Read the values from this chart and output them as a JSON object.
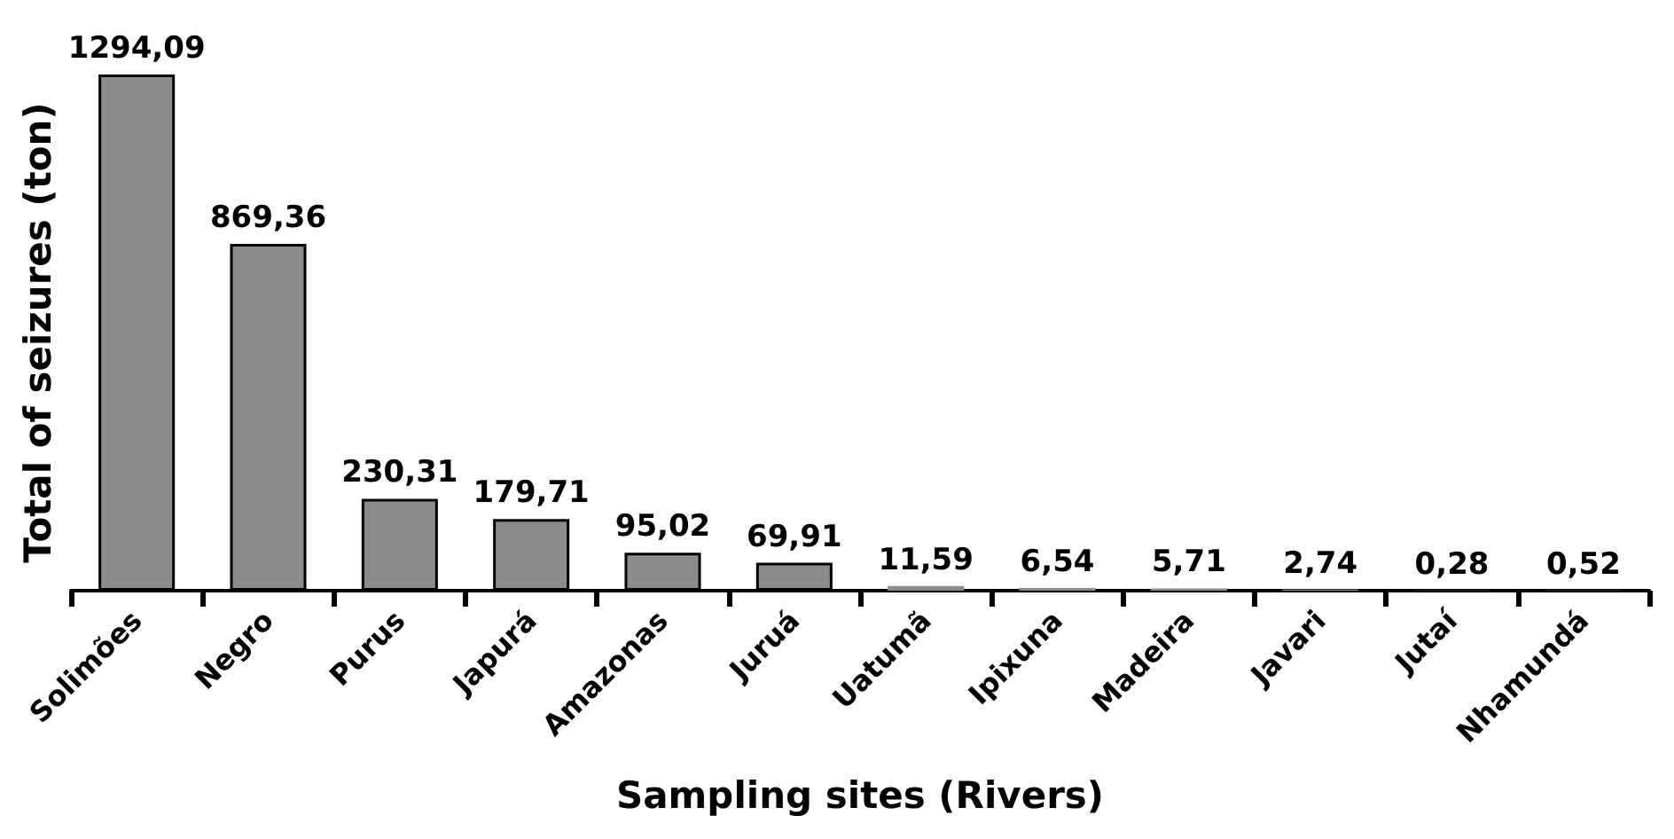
{
  "chart_data": {
    "type": "bar",
    "xlabel": "Sampling sites (Rivers)",
    "ylabel": "Total of seizures (ton)",
    "categories": [
      "Solimões",
      "Negro",
      "Purus",
      "Japurá",
      "Amazonas",
      "Juruá",
      "Uatumã",
      "Ipixuna",
      "Madeira",
      "Javari",
      "Jutaí",
      "Nhamundá"
    ],
    "values": [
      1294.09,
      869.36,
      230.31,
      179.71,
      95.02,
      69.91,
      11.59,
      6.54,
      5.71,
      2.74,
      0.28,
      0.52
    ],
    "value_labels": [
      "1294,09",
      "869,36",
      "230,31",
      "179,71",
      "95,02",
      "69,91",
      "11,59",
      "6,54",
      "5,71",
      "2,74",
      "0,28",
      "0,52"
    ],
    "color": "#8c8c8c",
    "grid": false
  }
}
